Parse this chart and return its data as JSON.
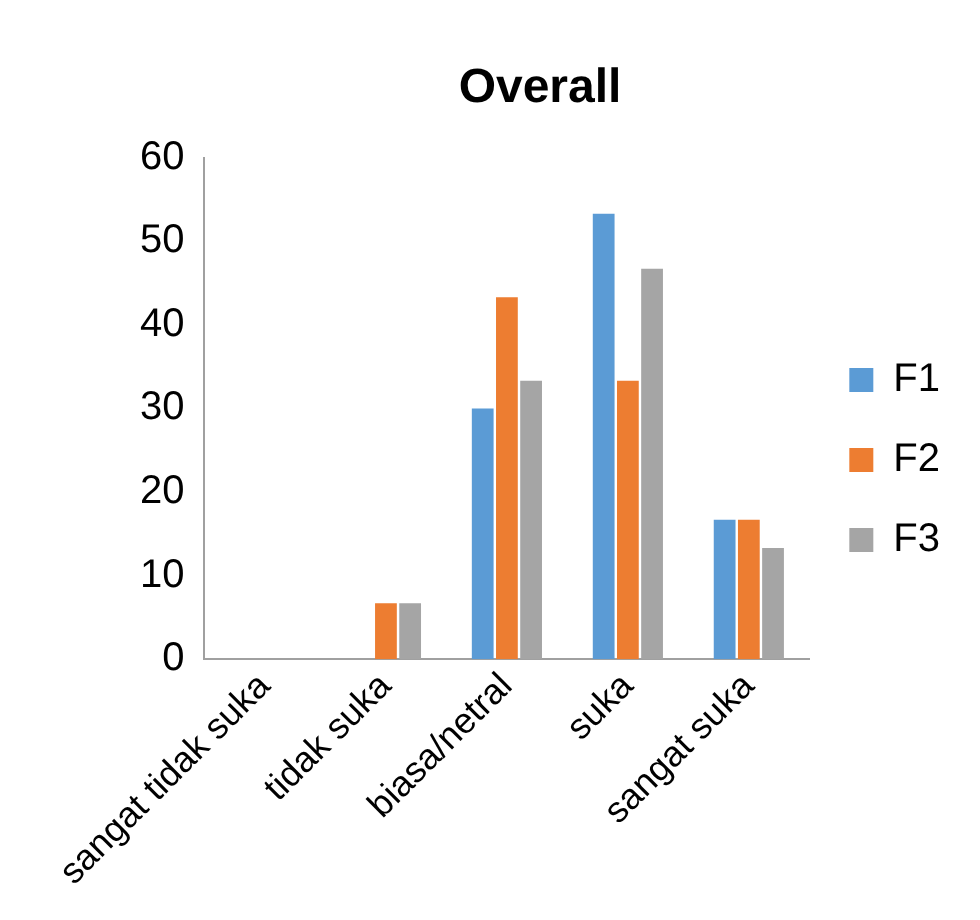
{
  "chart_data": {
    "type": "bar",
    "title": "Overall",
    "categories": [
      "sangat tidak suka",
      "tidak suka",
      "biasa/netral",
      "suka",
      "sangat suka"
    ],
    "series": [
      {
        "name": "F1",
        "color": "#5b9bd5",
        "values": [
          0,
          0,
          30,
          53.3,
          16.7
        ]
      },
      {
        "name": "F2",
        "color": "#ed7d31",
        "values": [
          0,
          6.7,
          43.3,
          33.3,
          16.7
        ]
      },
      {
        "name": "F3",
        "color": "#a5a5a5",
        "values": [
          0,
          6.7,
          33.3,
          46.7,
          13.3
        ]
      }
    ],
    "ylim": [
      0,
      60
    ],
    "yticks": [
      0,
      10,
      20,
      30,
      40,
      50,
      60
    ],
    "grid": false,
    "legend": "right"
  }
}
